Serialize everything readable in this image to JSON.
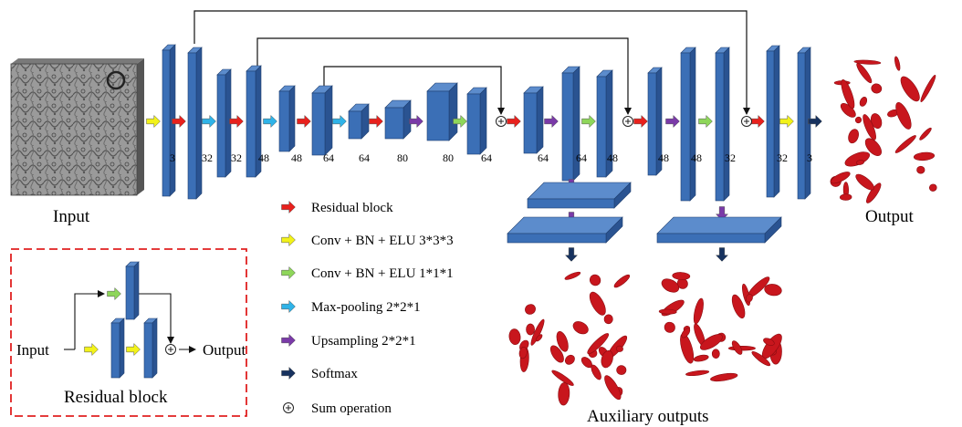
{
  "labels": {
    "input": "Input",
    "output": "Output",
    "auxiliary_outputs": "Auxiliary outputs",
    "residual_block_title": "Residual block",
    "inset_input": "Input",
    "inset_output": "Output"
  },
  "channel_numbers": [
    "3",
    "32",
    "32",
    "48",
    "48",
    "64",
    "64",
    "80",
    "80",
    "64",
    "64",
    "64",
    "48",
    "48",
    "48",
    "32",
    "32",
    "3"
  ],
  "legend": [
    {
      "label": "Residual block",
      "color": "#e8211d",
      "icon": "red-arrow-icon"
    },
    {
      "label": "Conv + BN + ELU  3*3*3",
      "color": "#f2f21a",
      "icon": "yellow-arrow-icon"
    },
    {
      "label": "Conv + BN + ELU  1*1*1",
      "color": "#8ed65a",
      "icon": "green-arrow-icon"
    },
    {
      "label": "Max-pooling  2*2*1",
      "color": "#2fb3e8",
      "icon": "blue-arrow-icon"
    },
    {
      "label": "Upsampling   2*2*1",
      "color": "#7a3aa8",
      "icon": "purple-arrow-icon"
    },
    {
      "label": "Softmax",
      "color": "#17325f",
      "icon": "navy-arrow-icon"
    },
    {
      "label": "Sum operation",
      "color": "#333333",
      "icon": "sum-icon"
    }
  ],
  "colors": {
    "block_face": "#3b6fb6",
    "block_side": "#2a5391",
    "block_top": "#5c8ccc",
    "segmentation": "#c8161d",
    "dashed_border": "#e02020"
  }
}
